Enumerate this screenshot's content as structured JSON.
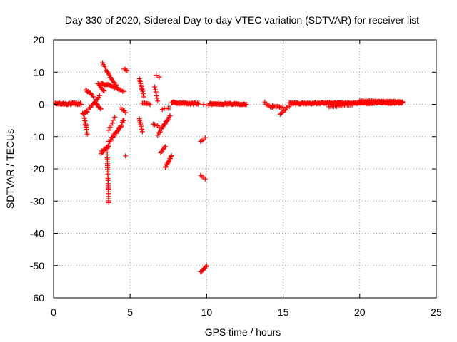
{
  "chart_data": {
    "type": "scatter",
    "title": "Day 330 of 2020, Sidereal Day-to-day VTEC variation (SDTVAR) for receiver list",
    "xlabel": "GPS time / hours",
    "ylabel": "SDTVAR / TECUs",
    "xlim": [
      0,
      25
    ],
    "ylim": [
      -60,
      20
    ],
    "xticks": [
      0,
      5,
      10,
      15,
      20,
      25
    ],
    "yticks": [
      -60,
      -50,
      -40,
      -30,
      -20,
      -10,
      0,
      10,
      20
    ],
    "grid": true,
    "marker": "+",
    "color": "#ff0000",
    "series": [
      {
        "name": "SDTVAR",
        "segments": [
          {
            "x": [
              0.1,
              1.8
            ],
            "y": [
              0.2,
              0.2
            ],
            "n": 40,
            "jitter": 0.6
          },
          {
            "x": [
              1.9,
              2.2
            ],
            "y": [
              -3,
              -2
            ],
            "n": 8,
            "jitter": 1.0
          },
          {
            "x": [
              2.0,
              2.2
            ],
            "y": [
              -4,
              -9
            ],
            "n": 12,
            "jitter": 0.5
          },
          {
            "x": [
              2.1,
              2.6
            ],
            "y": [
              4.5,
              2.5
            ],
            "n": 10,
            "jitter": 0.4
          },
          {
            "x": [
              2.3,
              3.0
            ],
            "y": [
              -1.5,
              2.5
            ],
            "n": 12,
            "jitter": 0.4
          },
          {
            "x": [
              2.7,
              3.1
            ],
            "y": [
              0.5,
              -1.5
            ],
            "n": 8,
            "jitter": 0.4
          },
          {
            "x": [
              2.9,
              3.3
            ],
            "y": [
              6.5,
              4.0
            ],
            "n": 8,
            "jitter": 0.4
          },
          {
            "x": [
              3.1,
              4.0
            ],
            "y": [
              6.5,
              5.5
            ],
            "n": 16,
            "jitter": 0.5
          },
          {
            "x": [
              3.2,
              3.5
            ],
            "y": [
              13,
              10
            ],
            "n": 6,
            "jitter": 0.3
          },
          {
            "x": [
              3.5,
              4.2
            ],
            "y": [
              10,
              5.0
            ],
            "n": 14,
            "jitter": 0.5
          },
          {
            "x": [
              4.0,
              4.6
            ],
            "y": [
              5.0,
              4.0
            ],
            "n": 8,
            "jitter": 0.3
          },
          {
            "x": [
              4.6,
              4.8
            ],
            "y": [
              11,
              10.5
            ],
            "n": 4,
            "jitter": 0.2
          },
          {
            "x": [
              3.1,
              3.6
            ],
            "y": [
              -15,
              -13
            ],
            "n": 16,
            "jitter": 1.0
          },
          {
            "x": [
              3.5,
              3.6
            ],
            "y": [
              -15,
              -30.5
            ],
            "n": 24,
            "jitter": 0.4
          },
          {
            "x": [
              3.6,
              4.6
            ],
            "y": [
              -12,
              -5
            ],
            "n": 26,
            "jitter": 1.0
          },
          {
            "x": [
              3.6,
              4.0
            ],
            "y": [
              -8,
              -4
            ],
            "n": 6,
            "jitter": 0.5
          },
          {
            "x": [
              4.4,
              4.7
            ],
            "y": [
              -1.0,
              -2.5
            ],
            "n": 5,
            "jitter": 0.4
          },
          {
            "x": [
              4.6,
              4.8
            ],
            "y": [
              -16,
              -16
            ],
            "n": 1,
            "jitter": 0.0
          },
          {
            "x": [
              5.6,
              5.9
            ],
            "y": [
              8.0,
              2.5
            ],
            "n": 12,
            "jitter": 0.4
          },
          {
            "x": [
              5.6,
              5.8
            ],
            "y": [
              -4.5,
              -8.5
            ],
            "n": 8,
            "jitter": 0.3
          },
          {
            "x": [
              5.8,
              6.3
            ],
            "y": [
              0.5,
              0.0
            ],
            "n": 8,
            "jitter": 0.3
          },
          {
            "x": [
              6.7,
              6.9
            ],
            "y": [
              9.0,
              8.5
            ],
            "n": 2,
            "jitter": 0.2
          },
          {
            "x": [
              6.6,
              6.8
            ],
            "y": [
              5.5,
              1.0
            ],
            "n": 6,
            "jitter": 0.4
          },
          {
            "x": [
              6.5,
              6.9
            ],
            "y": [
              -6,
              -7
            ],
            "n": 5,
            "jitter": 0.4
          },
          {
            "x": [
              6.8,
              7.6
            ],
            "y": [
              -9.5,
              -3.5
            ],
            "n": 16,
            "jitter": 0.6
          },
          {
            "x": [
              7.0,
              7.3
            ],
            "y": [
              -15,
              -13
            ],
            "n": 6,
            "jitter": 0.3
          },
          {
            "x": [
              7.3,
              7.7
            ],
            "y": [
              -19.5,
              -16
            ],
            "n": 12,
            "jitter": 0.4
          },
          {
            "x": [
              7.1,
              7.6
            ],
            "y": [
              -1.5,
              -1.0
            ],
            "n": 5,
            "jitter": 0.3
          },
          {
            "x": [
              7.7,
              9.5
            ],
            "y": [
              0.5,
              0.2
            ],
            "n": 40,
            "jitter": 0.6
          },
          {
            "x": [
              9.6,
              9.9
            ],
            "y": [
              -11.5,
              -10.5
            ],
            "n": 4,
            "jitter": 0.3
          },
          {
            "x": [
              9.6,
              9.9
            ],
            "y": [
              -22,
              -23
            ],
            "n": 4,
            "jitter": 0.3
          },
          {
            "x": [
              9.6,
              10.0
            ],
            "y": [
              -52,
              -50
            ],
            "n": 8,
            "jitter": 0.4
          },
          {
            "x": [
              9.8,
              10.3
            ],
            "y": [
              0.0,
              -0.5
            ],
            "n": 4,
            "jitter": 0.3
          },
          {
            "x": [
              10.2,
              12.6
            ],
            "y": [
              0.2,
              0.1
            ],
            "n": 50,
            "jitter": 0.4
          },
          {
            "x": [
              13.8,
              14.3
            ],
            "y": [
              0.5,
              -1.0
            ],
            "n": 8,
            "jitter": 0.5
          },
          {
            "x": [
              14.3,
              15.0
            ],
            "y": [
              -0.5,
              -1.0
            ],
            "n": 10,
            "jitter": 0.3
          },
          {
            "x": [
              14.8,
              15.4
            ],
            "y": [
              -3.0,
              -0.5
            ],
            "n": 8,
            "jitter": 0.3
          },
          {
            "x": [
              15.4,
              22.8
            ],
            "y": [
              0.3,
              0.5
            ],
            "n": 160,
            "jitter": 0.55
          },
          {
            "x": [
              18.0,
              19.5
            ],
            "y": [
              -0.8,
              -0.2
            ],
            "n": 16,
            "jitter": 0.3
          },
          {
            "x": [
              20.0,
              22.8
            ],
            "y": [
              1.0,
              0.8
            ],
            "n": 40,
            "jitter": 0.3
          }
        ]
      }
    ]
  }
}
